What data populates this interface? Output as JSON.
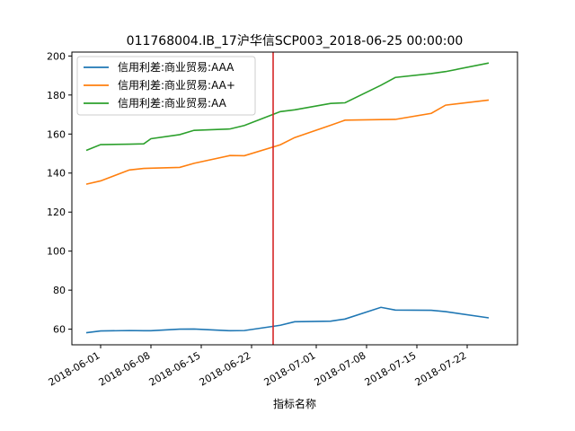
{
  "chart_data": {
    "type": "line",
    "title": "011768004.IB_17沪华信SCP003_2018-06-25 00:00:00",
    "xlabel": "指标名称",
    "ylabel": "",
    "x_range": [
      "2018-05-28",
      "2018-07-29"
    ],
    "ylim": [
      52,
      202
    ],
    "x_ticks": [
      "2018-06-01",
      "2018-06-08",
      "2018-06-15",
      "2018-06-22",
      "2018-07-01",
      "2018-07-08",
      "2018-07-15",
      "2018-07-22"
    ],
    "y_ticks": [
      60,
      80,
      100,
      120,
      140,
      160,
      180,
      200
    ],
    "grid": false,
    "legend_position": "top-left",
    "vline": {
      "x": "2018-06-25",
      "color": "#d62728"
    },
    "x": [
      "2018-05-30",
      "2018-06-01",
      "2018-06-05",
      "2018-06-07",
      "2018-06-08",
      "2018-06-12",
      "2018-06-14",
      "2018-06-19",
      "2018-06-21",
      "2018-06-26",
      "2018-06-28",
      "2018-07-03",
      "2018-07-05",
      "2018-07-10",
      "2018-07-12",
      "2018-07-17",
      "2018-07-19",
      "2018-07-25"
    ],
    "series": [
      {
        "name": "信用利差:商业贸易:AAA",
        "color": "#1f77b4",
        "values": [
          58.2,
          59.1,
          59.3,
          59.2,
          59.2,
          60.0,
          60.1,
          59.2,
          59.3,
          62.0,
          63.8,
          64.1,
          65.2,
          71.2,
          69.8,
          69.7,
          69.0,
          65.8
        ]
      },
      {
        "name": "信用利差:商业贸易:AA+",
        "color": "#ff7f0e",
        "values": [
          134.3,
          136.0,
          141.6,
          142.4,
          142.5,
          142.9,
          145.0,
          149.0,
          148.9,
          154.5,
          158.2,
          164.5,
          167.1,
          167.4,
          167.5,
          170.6,
          174.8,
          177.4
        ]
      },
      {
        "name": "信用利差:商业贸易:AA",
        "color": "#2ca02c",
        "values": [
          151.6,
          154.6,
          154.8,
          155.0,
          157.6,
          159.7,
          161.9,
          162.6,
          164.4,
          171.5,
          172.4,
          175.7,
          176.0,
          185.0,
          189.0,
          191.0,
          192.0,
          196.4
        ]
      }
    ]
  }
}
